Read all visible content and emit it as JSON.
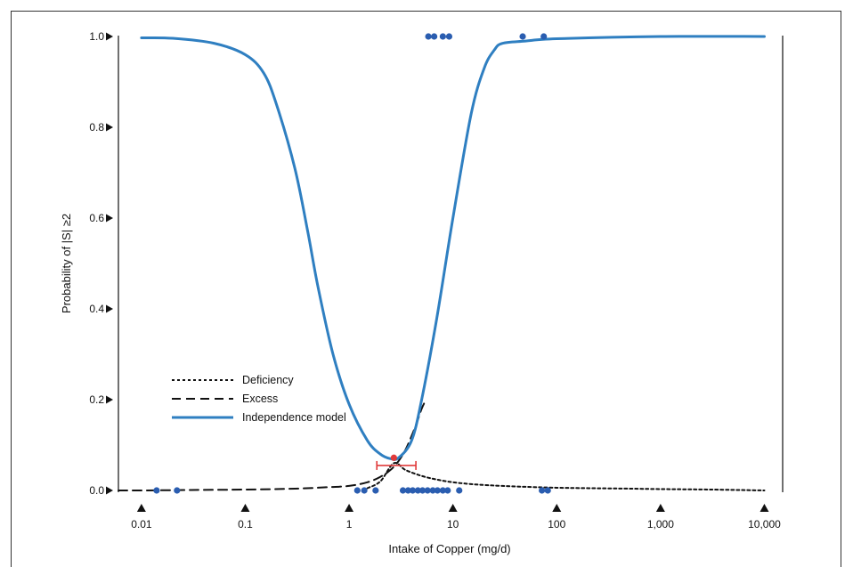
{
  "chart_data": {
    "type": "line",
    "title": "",
    "xlabel": "Intake of Copper (mg/d)",
    "ylabel": "Probability of |S| ≥2",
    "x_scale": "log",
    "xlim": [
      0.006,
      15000
    ],
    "ylim": [
      0,
      1
    ],
    "x_ticks": [
      {
        "value": 0.01,
        "label": "0.01"
      },
      {
        "value": 0.1,
        "label": "0.1"
      },
      {
        "value": 1,
        "label": "1"
      },
      {
        "value": 10,
        "label": "10"
      },
      {
        "value": 100,
        "label": "100"
      },
      {
        "value": 1000,
        "label": "1,000"
      },
      {
        "value": 10000,
        "label": "10,000"
      }
    ],
    "y_ticks": [
      {
        "value": 0.0,
        "label": "0.0"
      },
      {
        "value": 0.2,
        "label": "0.2"
      },
      {
        "value": 0.4,
        "label": "0.4"
      },
      {
        "value": 0.6,
        "label": "0.6"
      },
      {
        "value": 0.8,
        "label": "0.8"
      },
      {
        "value": 1.0,
        "label": "1.0"
      }
    ],
    "grid": false,
    "legend_position": "bottom-left",
    "series": [
      {
        "name": "Deficiency",
        "style": "dotted",
        "color": "#111111",
        "x": [
          1.5,
          2,
          2.7,
          3.5,
          5,
          7,
          10,
          15,
          20,
          30,
          50,
          100,
          200,
          500,
          1000,
          3000,
          10000
        ],
        "y": [
          0.005,
          0.02,
          0.06,
          0.045,
          0.032,
          0.024,
          0.018,
          0.014,
          0.012,
          0.01,
          0.008,
          0.006,
          0.005,
          0.004,
          0.003,
          0.002,
          0.0
        ]
      },
      {
        "name": "Excess",
        "style": "dashed",
        "color": "#111111",
        "x": [
          0.006,
          0.01,
          0.03,
          0.1,
          0.3,
          0.6,
          1,
          1.5,
          2,
          2.5,
          3,
          3.5,
          4,
          4.5,
          5,
          5.5
        ],
        "y": [
          0.0,
          0.0,
          0.001,
          0.002,
          0.004,
          0.007,
          0.01,
          0.018,
          0.03,
          0.045,
          0.065,
          0.09,
          0.12,
          0.15,
          0.18,
          0.2
        ]
      },
      {
        "name": "Independence model",
        "style": "solid",
        "color": "#2f7fc1",
        "x": [
          0.01,
          0.02,
          0.05,
          0.1,
          0.15,
          0.2,
          0.3,
          0.4,
          0.5,
          0.7,
          1,
          1.5,
          2,
          2.5,
          3,
          4,
          5,
          7,
          10,
          15,
          20,
          25,
          30,
          50,
          100,
          1000,
          10000
        ],
        "y": [
          0.997,
          0.996,
          0.985,
          0.96,
          0.92,
          0.85,
          0.71,
          0.57,
          0.45,
          0.3,
          0.19,
          0.11,
          0.08,
          0.07,
          0.072,
          0.11,
          0.2,
          0.38,
          0.6,
          0.83,
          0.93,
          0.97,
          0.985,
          0.99,
          0.995,
          1.0,
          1.0
        ]
      }
    ],
    "observations": {
      "name": "",
      "color": "#2a5db0",
      "points": [
        {
          "x": 0.014,
          "y": 0.0
        },
        {
          "x": 0.022,
          "y": 0.0
        },
        {
          "x": 1.2,
          "y": 0.0
        },
        {
          "x": 1.4,
          "y": 0.0
        },
        {
          "x": 1.8,
          "y": 0.0
        },
        {
          "x": 3.3,
          "y": 0.0
        },
        {
          "x": 3.7,
          "y": 0.0
        },
        {
          "x": 4.1,
          "y": 0.0
        },
        {
          "x": 4.6,
          "y": 0.0
        },
        {
          "x": 5.1,
          "y": 0.0
        },
        {
          "x": 5.7,
          "y": 0.0
        },
        {
          "x": 6.4,
          "y": 0.0
        },
        {
          "x": 7.1,
          "y": 0.0
        },
        {
          "x": 8.0,
          "y": 0.0
        },
        {
          "x": 8.9,
          "y": 0.0
        },
        {
          "x": 11.5,
          "y": 0.0
        },
        {
          "x": 72,
          "y": 0.0
        },
        {
          "x": 82,
          "y": 0.0
        },
        {
          "x": 5.8,
          "y": 1.0
        },
        {
          "x": 6.6,
          "y": 1.0
        },
        {
          "x": 8.0,
          "y": 1.0
        },
        {
          "x": 9.2,
          "y": 1.0
        },
        {
          "x": 47,
          "y": 1.0
        },
        {
          "x": 75,
          "y": 1.0
        }
      ]
    },
    "optimum": {
      "x": 2.7,
      "y": 0.072,
      "color": "#e03a3a",
      "ci_low": 1.85,
      "ci_high": 4.4,
      "ci_y": 0.055,
      "ci_color": "#e03a3a"
    }
  }
}
